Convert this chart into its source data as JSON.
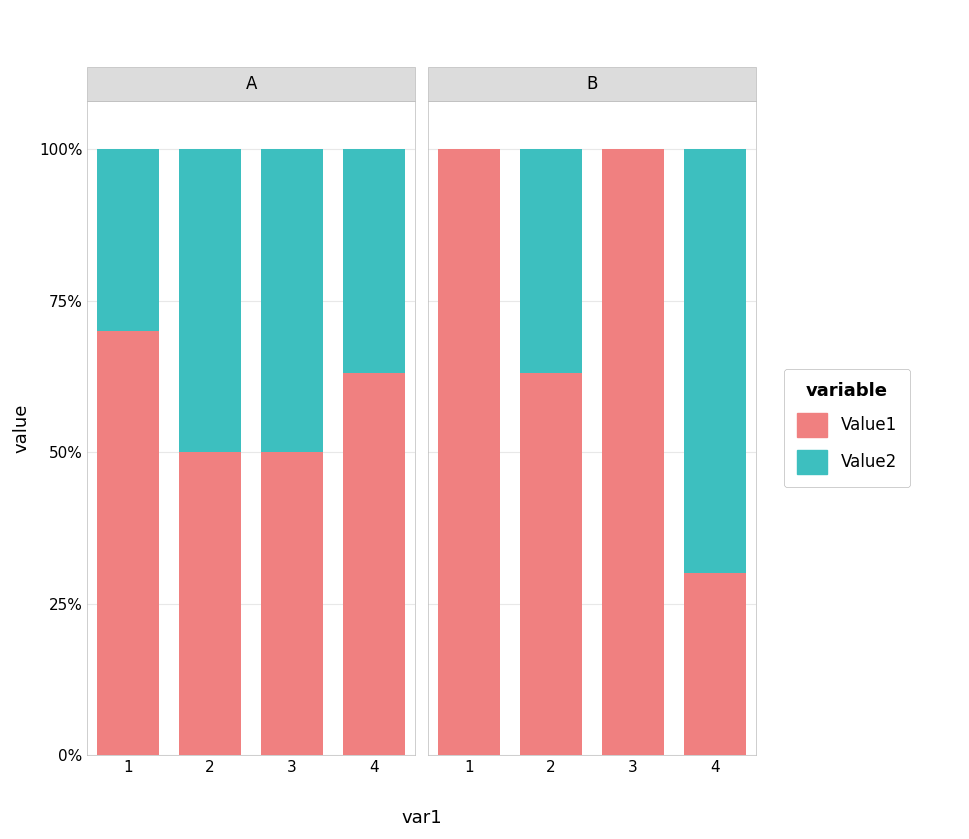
{
  "panels": [
    "A",
    "B"
  ],
  "x_labels": [
    1,
    2,
    3,
    4
  ],
  "xlabel": "var1",
  "ylabel": "value",
  "legend_title": "variable",
  "legend_labels": [
    "Value1",
    "Value2"
  ],
  "color_value1": "#F08080",
  "color_value2": "#3DBFBF",
  "panel_A": {
    "value1": [
      0.7,
      0.5,
      0.5,
      0.63
    ],
    "value2": [
      0.3,
      0.5,
      0.5,
      0.37
    ]
  },
  "panel_B": {
    "value1": [
      1.0,
      0.63,
      1.0,
      0.3
    ],
    "value2": [
      0.0,
      0.37,
      0.0,
      0.7
    ]
  },
  "yticks": [
    0.0,
    0.25,
    0.5,
    0.75,
    1.0
  ],
  "ytick_labels": [
    "0%",
    "25%",
    "50%",
    "75%",
    "100%"
  ],
  "bar_width": 0.75,
  "axis_label_fontsize": 13,
  "tick_fontsize": 11,
  "legend_fontsize": 12,
  "legend_title_fontsize": 13,
  "panel_label_fontsize": 12,
  "facet_header_color": "#DCDCDC",
  "facet_header_text_color": "#000000",
  "background_color": "#FFFFFF",
  "grid_color": "#E8E8E8",
  "panel_bg_color": "#FFFFFF"
}
